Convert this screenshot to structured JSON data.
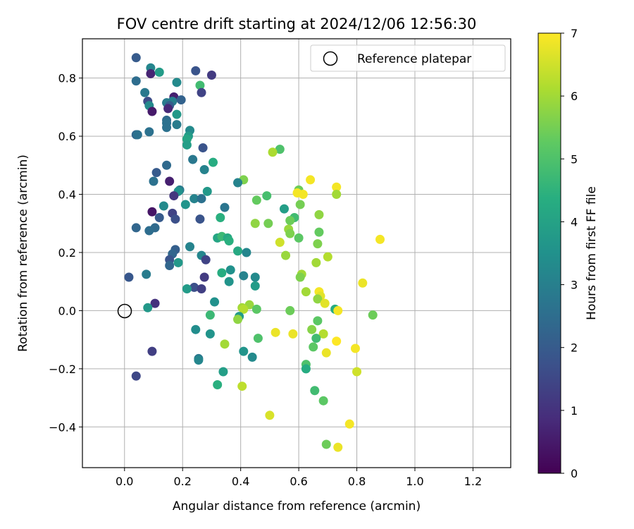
{
  "chart_data": {
    "type": "scatter",
    "title": "FOV centre drift starting at 2024/12/06 12:56:30",
    "xlabel": "Angular distance from reference (arcmin)",
    "ylabel": "Rotation from reference (arcmin)",
    "xlim": [
      -0.145,
      1.33
    ],
    "ylim": [
      -0.54,
      0.935
    ],
    "xticks": [
      0.0,
      0.2,
      0.4,
      0.6,
      0.8,
      1.0,
      1.2
    ],
    "xtick_labels": [
      "0.0",
      "0.2",
      "0.4",
      "0.6",
      "0.8",
      "1.0",
      "1.2"
    ],
    "yticks": [
      -0.4,
      -0.2,
      0.0,
      0.2,
      0.4,
      0.6,
      0.8
    ],
    "ytick_labels": [
      "−0.4",
      "−0.2",
      "0.0",
      "0.2",
      "0.4",
      "0.6",
      "0.8"
    ],
    "grid": true,
    "colormap": "viridis",
    "colorbar": {
      "label": "Hours from first FF file",
      "range": [
        0,
        7
      ],
      "ticks": [
        0,
        1,
        2,
        3,
        4,
        5,
        6,
        7
      ],
      "tick_labels": [
        "0",
        "1",
        "2",
        "3",
        "4",
        "5",
        "6",
        "7"
      ]
    },
    "legend": {
      "position": "top-right",
      "entries": [
        "Reference platepar"
      ]
    },
    "reference_point": {
      "x": 0.0,
      "y": 0.0
    },
    "points": [
      {
        "x": 0.04,
        "y": 0.87,
        "h": 2.0
      },
      {
        "x": 0.09,
        "y": 0.835,
        "h": 3.2
      },
      {
        "x": 0.09,
        "y": 0.815,
        "h": 0.7
      },
      {
        "x": 0.12,
        "y": 0.82,
        "h": 3.8
      },
      {
        "x": 0.245,
        "y": 0.825,
        "h": 1.8
      },
      {
        "x": 0.3,
        "y": 0.81,
        "h": 1.2
      },
      {
        "x": 0.04,
        "y": 0.79,
        "h": 2.5
      },
      {
        "x": 0.18,
        "y": 0.785,
        "h": 3.3
      },
      {
        "x": 0.26,
        "y": 0.775,
        "h": 4.8
      },
      {
        "x": 0.07,
        "y": 0.75,
        "h": 2.8
      },
      {
        "x": 0.265,
        "y": 0.75,
        "h": 1.4
      },
      {
        "x": 0.17,
        "y": 0.735,
        "h": 0.6
      },
      {
        "x": 0.08,
        "y": 0.72,
        "h": 1.6
      },
      {
        "x": 0.165,
        "y": 0.72,
        "h": 3.0
      },
      {
        "x": 0.195,
        "y": 0.725,
        "h": 2.2
      },
      {
        "x": 0.145,
        "y": 0.715,
        "h": 2.9
      },
      {
        "x": 0.085,
        "y": 0.705,
        "h": 3.3
      },
      {
        "x": 0.155,
        "y": 0.705,
        "h": 2.1
      },
      {
        "x": 0.15,
        "y": 0.695,
        "h": 0.8
      },
      {
        "x": 0.095,
        "y": 0.685,
        "h": 0.5
      },
      {
        "x": 0.18,
        "y": 0.675,
        "h": 3.7
      },
      {
        "x": 0.145,
        "y": 0.655,
        "h": 2.4
      },
      {
        "x": 0.145,
        "y": 0.645,
        "h": 2.6
      },
      {
        "x": 0.18,
        "y": 0.64,
        "h": 2.9
      },
      {
        "x": 0.145,
        "y": 0.63,
        "h": 2.6
      },
      {
        "x": 0.225,
        "y": 0.62,
        "h": 3.3
      },
      {
        "x": 0.04,
        "y": 0.605,
        "h": 2.3
      },
      {
        "x": 0.045,
        "y": 0.605,
        "h": 2.6
      },
      {
        "x": 0.085,
        "y": 0.615,
        "h": 2.6
      },
      {
        "x": 0.22,
        "y": 0.6,
        "h": 3.8
      },
      {
        "x": 0.215,
        "y": 0.59,
        "h": 4.1
      },
      {
        "x": 0.215,
        "y": 0.57,
        "h": 3.9
      },
      {
        "x": 0.27,
        "y": 0.56,
        "h": 1.8
      },
      {
        "x": 0.535,
        "y": 0.555,
        "h": 5.0
      },
      {
        "x": 0.51,
        "y": 0.545,
        "h": 6.1
      },
      {
        "x": 0.235,
        "y": 0.52,
        "h": 2.8
      },
      {
        "x": 0.305,
        "y": 0.51,
        "h": 4.3
      },
      {
        "x": 0.145,
        "y": 0.5,
        "h": 2.4
      },
      {
        "x": 0.275,
        "y": 0.485,
        "h": 3.1
      },
      {
        "x": 0.11,
        "y": 0.475,
        "h": 2.0
      },
      {
        "x": 0.41,
        "y": 0.45,
        "h": 5.6
      },
      {
        "x": 0.64,
        "y": 0.45,
        "h": 6.9
      },
      {
        "x": 0.1,
        "y": 0.445,
        "h": 2.6
      },
      {
        "x": 0.155,
        "y": 0.445,
        "h": 0.6
      },
      {
        "x": 0.39,
        "y": 0.44,
        "h": 3.1
      },
      {
        "x": 0.73,
        "y": 0.425,
        "h": 6.9
      },
      {
        "x": 0.19,
        "y": 0.415,
        "h": 2.9
      },
      {
        "x": 0.6,
        "y": 0.415,
        "h": 5.4
      },
      {
        "x": 0.185,
        "y": 0.41,
        "h": 3.5
      },
      {
        "x": 0.285,
        "y": 0.41,
        "h": 3.7
      },
      {
        "x": 0.595,
        "y": 0.405,
        "h": 6.9
      },
      {
        "x": 0.615,
        "y": 0.4,
        "h": 6.9
      },
      {
        "x": 0.73,
        "y": 0.4,
        "h": 6.0
      },
      {
        "x": 0.17,
        "y": 0.395,
        "h": 1.1
      },
      {
        "x": 0.49,
        "y": 0.395,
        "h": 4.9
      },
      {
        "x": 0.24,
        "y": 0.385,
        "h": 3.1
      },
      {
        "x": 0.265,
        "y": 0.385,
        "h": 2.6
      },
      {
        "x": 0.455,
        "y": 0.38,
        "h": 5.3
      },
      {
        "x": 0.21,
        "y": 0.365,
        "h": 3.6
      },
      {
        "x": 0.605,
        "y": 0.365,
        "h": 5.5
      },
      {
        "x": 0.135,
        "y": 0.36,
        "h": 3.3
      },
      {
        "x": 0.345,
        "y": 0.355,
        "h": 2.7
      },
      {
        "x": 0.55,
        "y": 0.35,
        "h": 3.9
      },
      {
        "x": 0.095,
        "y": 0.34,
        "h": 0.4
      },
      {
        "x": 0.165,
        "y": 0.335,
        "h": 1.4
      },
      {
        "x": 0.67,
        "y": 0.33,
        "h": 5.8
      },
      {
        "x": 0.12,
        "y": 0.32,
        "h": 2.0
      },
      {
        "x": 0.175,
        "y": 0.315,
        "h": 1.7
      },
      {
        "x": 0.26,
        "y": 0.315,
        "h": 1.8
      },
      {
        "x": 0.33,
        "y": 0.32,
        "h": 4.4
      },
      {
        "x": 0.585,
        "y": 0.32,
        "h": 4.8
      },
      {
        "x": 0.57,
        "y": 0.31,
        "h": 5.4
      },
      {
        "x": 0.45,
        "y": 0.3,
        "h": 5.8
      },
      {
        "x": 0.495,
        "y": 0.3,
        "h": 5.5
      },
      {
        "x": 0.04,
        "y": 0.285,
        "h": 2.3
      },
      {
        "x": 0.105,
        "y": 0.285,
        "h": 2.4
      },
      {
        "x": 0.085,
        "y": 0.275,
        "h": 2.5
      },
      {
        "x": 0.565,
        "y": 0.28,
        "h": 5.9
      },
      {
        "x": 0.67,
        "y": 0.27,
        "h": 5.3
      },
      {
        "x": 0.57,
        "y": 0.265,
        "h": 5.6
      },
      {
        "x": 0.32,
        "y": 0.25,
        "h": 4.1
      },
      {
        "x": 0.335,
        "y": 0.255,
        "h": 4.7
      },
      {
        "x": 0.355,
        "y": 0.25,
        "h": 4.2
      },
      {
        "x": 0.36,
        "y": 0.24,
        "h": 4.4
      },
      {
        "x": 0.6,
        "y": 0.25,
        "h": 5.2
      },
      {
        "x": 0.535,
        "y": 0.235,
        "h": 6.5
      },
      {
        "x": 0.88,
        "y": 0.245,
        "h": 6.9
      },
      {
        "x": 0.665,
        "y": 0.23,
        "h": 5.6
      },
      {
        "x": 0.225,
        "y": 0.22,
        "h": 3.1
      },
      {
        "x": 0.175,
        "y": 0.21,
        "h": 2.1
      },
      {
        "x": 0.165,
        "y": 0.195,
        "h": 2.3
      },
      {
        "x": 0.39,
        "y": 0.205,
        "h": 4.2
      },
      {
        "x": 0.42,
        "y": 0.2,
        "h": 3.2
      },
      {
        "x": 0.265,
        "y": 0.19,
        "h": 3.2
      },
      {
        "x": 0.555,
        "y": 0.19,
        "h": 5.9
      },
      {
        "x": 0.7,
        "y": 0.185,
        "h": 6.2
      },
      {
        "x": 0.155,
        "y": 0.175,
        "h": 1.8
      },
      {
        "x": 0.28,
        "y": 0.175,
        "h": 1.4
      },
      {
        "x": 0.185,
        "y": 0.165,
        "h": 3.7
      },
      {
        "x": 0.66,
        "y": 0.165,
        "h": 6.0
      },
      {
        "x": 0.155,
        "y": 0.155,
        "h": 2.3
      },
      {
        "x": 0.365,
        "y": 0.14,
        "h": 3.5
      },
      {
        "x": 0.335,
        "y": 0.13,
        "h": 4.3
      },
      {
        "x": 0.075,
        "y": 0.125,
        "h": 2.9
      },
      {
        "x": 0.61,
        "y": 0.125,
        "h": 6.0
      },
      {
        "x": 0.605,
        "y": 0.115,
        "h": 5.6
      },
      {
        "x": 0.015,
        "y": 0.115,
        "h": 1.9
      },
      {
        "x": 0.275,
        "y": 0.115,
        "h": 1.2
      },
      {
        "x": 0.41,
        "y": 0.12,
        "h": 3.1
      },
      {
        "x": 0.45,
        "y": 0.115,
        "h": 3.3
      },
      {
        "x": 0.36,
        "y": 0.1,
        "h": 3.6
      },
      {
        "x": 0.82,
        "y": 0.095,
        "h": 6.8
      },
      {
        "x": 0.45,
        "y": 0.085,
        "h": 3.8
      },
      {
        "x": 0.24,
        "y": 0.08,
        "h": 1.7
      },
      {
        "x": 0.265,
        "y": 0.075,
        "h": 1.3
      },
      {
        "x": 0.215,
        "y": 0.075,
        "h": 3.8
      },
      {
        "x": 0.625,
        "y": 0.065,
        "h": 6.0
      },
      {
        "x": 0.67,
        "y": 0.065,
        "h": 6.9
      },
      {
        "x": 0.675,
        "y": 0.05,
        "h": 6.7
      },
      {
        "x": 0.665,
        "y": 0.04,
        "h": 5.8
      },
      {
        "x": 0.31,
        "y": 0.03,
        "h": 3.5
      },
      {
        "x": 0.105,
        "y": 0.025,
        "h": 1.0
      },
      {
        "x": 0.69,
        "y": 0.025,
        "h": 6.7
      },
      {
        "x": 0.43,
        "y": 0.02,
        "h": 5.9
      },
      {
        "x": 0.405,
        "y": 0.01,
        "h": 6.0
      },
      {
        "x": 0.41,
        "y": 0.005,
        "h": 6.2
      },
      {
        "x": 0.08,
        "y": 0.01,
        "h": 3.7
      },
      {
        "x": 0.455,
        "y": 0.005,
        "h": 5.2
      },
      {
        "x": 0.57,
        "y": 0.0,
        "h": 5.4
      },
      {
        "x": 0.725,
        "y": 0.005,
        "h": 4.3
      },
      {
        "x": 0.735,
        "y": 0.0,
        "h": 6.9
      },
      {
        "x": 0.295,
        "y": -0.015,
        "h": 4.7
      },
      {
        "x": 0.855,
        "y": -0.015,
        "h": 5.4
      },
      {
        "x": 0.395,
        "y": -0.02,
        "h": 3.8
      },
      {
        "x": 0.39,
        "y": -0.03,
        "h": 5.8
      },
      {
        "x": 0.665,
        "y": -0.035,
        "h": 5.2
      },
      {
        "x": 0.245,
        "y": -0.065,
        "h": 3.4
      },
      {
        "x": 0.645,
        "y": -0.065,
        "h": 5.7
      },
      {
        "x": 0.52,
        "y": -0.075,
        "h": 6.8
      },
      {
        "x": 0.58,
        "y": -0.08,
        "h": 6.8
      },
      {
        "x": 0.685,
        "y": -0.08,
        "h": 6.2
      },
      {
        "x": 0.295,
        "y": -0.08,
        "h": 3.6
      },
      {
        "x": 0.46,
        "y": -0.095,
        "h": 5.0
      },
      {
        "x": 0.66,
        "y": -0.095,
        "h": 4.8
      },
      {
        "x": 0.73,
        "y": -0.105,
        "h": 7.0
      },
      {
        "x": 0.345,
        "y": -0.115,
        "h": 6.0
      },
      {
        "x": 0.65,
        "y": -0.125,
        "h": 5.2
      },
      {
        "x": 0.095,
        "y": -0.14,
        "h": 1.3
      },
      {
        "x": 0.41,
        "y": -0.14,
        "h": 3.6
      },
      {
        "x": 0.695,
        "y": -0.145,
        "h": 6.8
      },
      {
        "x": 0.795,
        "y": -0.13,
        "h": 6.9
      },
      {
        "x": 0.44,
        "y": -0.16,
        "h": 3.3
      },
      {
        "x": 0.255,
        "y": -0.165,
        "h": 2.8
      },
      {
        "x": 0.255,
        "y": -0.17,
        "h": 3.2
      },
      {
        "x": 0.625,
        "y": -0.185,
        "h": 5.0
      },
      {
        "x": 0.625,
        "y": -0.2,
        "h": 4.3
      },
      {
        "x": 0.34,
        "y": -0.21,
        "h": 3.9
      },
      {
        "x": 0.8,
        "y": -0.21,
        "h": 6.5
      },
      {
        "x": 0.04,
        "y": -0.225,
        "h": 1.5
      },
      {
        "x": 0.32,
        "y": -0.255,
        "h": 4.4
      },
      {
        "x": 0.405,
        "y": -0.26,
        "h": 6.3
      },
      {
        "x": 0.655,
        "y": -0.275,
        "h": 4.8
      },
      {
        "x": 0.685,
        "y": -0.31,
        "h": 5.2
      },
      {
        "x": 0.5,
        "y": -0.36,
        "h": 6.6
      },
      {
        "x": 0.775,
        "y": -0.39,
        "h": 6.9
      },
      {
        "x": 0.695,
        "y": -0.46,
        "h": 5.4
      },
      {
        "x": 0.735,
        "y": -0.47,
        "h": 6.8
      }
    ]
  }
}
